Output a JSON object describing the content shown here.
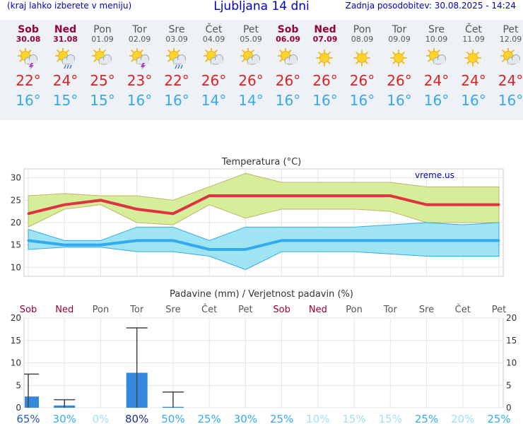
{
  "header": {
    "left": "(kraj lahko izberete v meniju)",
    "title": "Ljubljana 14 dni",
    "updated": "Zadnja posodobitev: 30.08.2025 - 14:24"
  },
  "days": [
    {
      "name": "Sob",
      "date": "30.08",
      "weekend": true,
      "icon": "sun-cloud-thunder-icon",
      "tmax": "22°",
      "tmin": "16°"
    },
    {
      "name": "Ned",
      "date": "31.08",
      "weekend": true,
      "icon": "sun-cloud-rain-icon",
      "tmax": "24°",
      "tmin": "15°"
    },
    {
      "name": "Pon",
      "date": "01.09",
      "weekend": false,
      "icon": "sun-cloud-icon",
      "tmax": "25°",
      "tmin": "15°"
    },
    {
      "name": "Tor",
      "date": "02.09",
      "weekend": false,
      "icon": "sun-cloud-thunder-icon",
      "tmax": "23°",
      "tmin": "16°"
    },
    {
      "name": "Sre",
      "date": "03.09",
      "weekend": false,
      "icon": "sun-cloud-rain-icon",
      "tmax": "22°",
      "tmin": "16°"
    },
    {
      "name": "Čet",
      "date": "04.09",
      "weekend": false,
      "icon": "sun-cloud-icon",
      "tmax": "26°",
      "tmin": "14°"
    },
    {
      "name": "Pet",
      "date": "05.09",
      "weekend": false,
      "icon": "sun-cloud-icon",
      "tmax": "26°",
      "tmin": "14°"
    },
    {
      "name": "Sob",
      "date": "06.09",
      "weekend": true,
      "icon": "sun-cloud-icon",
      "tmax": "26°",
      "tmin": "16°"
    },
    {
      "name": "Ned",
      "date": "07.09",
      "weekend": true,
      "icon": "sun-icon",
      "tmax": "26°",
      "tmin": "16°"
    },
    {
      "name": "Pon",
      "date": "08.09",
      "weekend": false,
      "icon": "sun-icon",
      "tmax": "26°",
      "tmin": "16°"
    },
    {
      "name": "Tor",
      "date": "09.09",
      "weekend": false,
      "icon": "sun-icon",
      "tmax": "26°",
      "tmin": "16°"
    },
    {
      "name": "Sre",
      "date": "10.09",
      "weekend": false,
      "icon": "sun-cloud-icon",
      "tmax": "24°",
      "tmin": "16°"
    },
    {
      "name": "Čet",
      "date": "11.09",
      "weekend": false,
      "icon": "sun-icon",
      "tmax": "24°",
      "tmin": "16°"
    },
    {
      "name": "Pet",
      "date": "12.09",
      "weekend": false,
      "icon": "sun-cloud-icon",
      "tmax": "24°",
      "tmin": "16°"
    }
  ],
  "chart_data": [
    {
      "type": "line",
      "title": "Temperatura (°C)",
      "watermark": "vreme.us",
      "ylim": [
        8,
        32
      ],
      "yticks": [
        10,
        15,
        20,
        25,
        30
      ],
      "grid": true,
      "colors": {
        "max_line": "#dd3344",
        "max_band": "#d6ee9a",
        "min_line": "#33aaee",
        "min_band": "#9ee4f2"
      },
      "series": [
        {
          "values": [
            22,
            24,
            25,
            23,
            22,
            26,
            26,
            26,
            26,
            26,
            26,
            24,
            24,
            24
          ]
        },
        {
          "values": [
            26,
            26.5,
            26,
            26,
            25,
            28,
            31,
            29,
            29,
            29,
            29,
            28,
            28,
            28
          ]
        },
        {
          "values": [
            19,
            23,
            24,
            20,
            19.5,
            24,
            21,
            23,
            23,
            23,
            22.5,
            20,
            20,
            20
          ]
        },
        {
          "values": [
            16,
            15,
            15,
            16,
            16,
            14,
            14,
            16,
            16,
            16,
            16,
            16,
            16,
            16
          ]
        },
        {
          "values": [
            18.5,
            16,
            16,
            19,
            19,
            16,
            19,
            19,
            19,
            19,
            19.5,
            20,
            19.5,
            20
          ]
        },
        {
          "values": [
            14,
            14.5,
            14.5,
            13.5,
            13.5,
            12.5,
            9.5,
            13.5,
            13.5,
            13.5,
            13,
            12.5,
            12.5,
            12.5
          ]
        }
      ]
    },
    {
      "type": "bar",
      "title": "Padavine (mm) / Verjetnost padavin (%)",
      "ylim": [
        0,
        20
      ],
      "yticks": [
        0,
        5,
        10,
        15,
        20
      ],
      "grid": true,
      "colors": {
        "bar": "#3388dd",
        "whisker": "#444444"
      },
      "categories": [
        "Sob",
        "Ned",
        "Pon",
        "Tor",
        "Sre",
        "Čet",
        "Pet",
        "Sob",
        "Ned",
        "Pon",
        "Tor",
        "Sre",
        "Čet",
        "Pet"
      ],
      "values": [
        2.5,
        0.5,
        0,
        7.8,
        0.2,
        0,
        0,
        0,
        0,
        0,
        0,
        0,
        0,
        0
      ],
      "upper": [
        7.5,
        1.8,
        0,
        17.8,
        3.5,
        0,
        0,
        0,
        0,
        0,
        0,
        0,
        0,
        0
      ],
      "probability": [
        "65%",
        "30%",
        "0%",
        "80%",
        "50%",
        "25%",
        "30%",
        "25%",
        "10%",
        "15%",
        "15%",
        "25%",
        "20%",
        "25%"
      ],
      "probability_values": [
        65,
        30,
        0,
        80,
        50,
        25,
        30,
        25,
        10,
        15,
        15,
        25,
        20,
        25
      ]
    }
  ]
}
